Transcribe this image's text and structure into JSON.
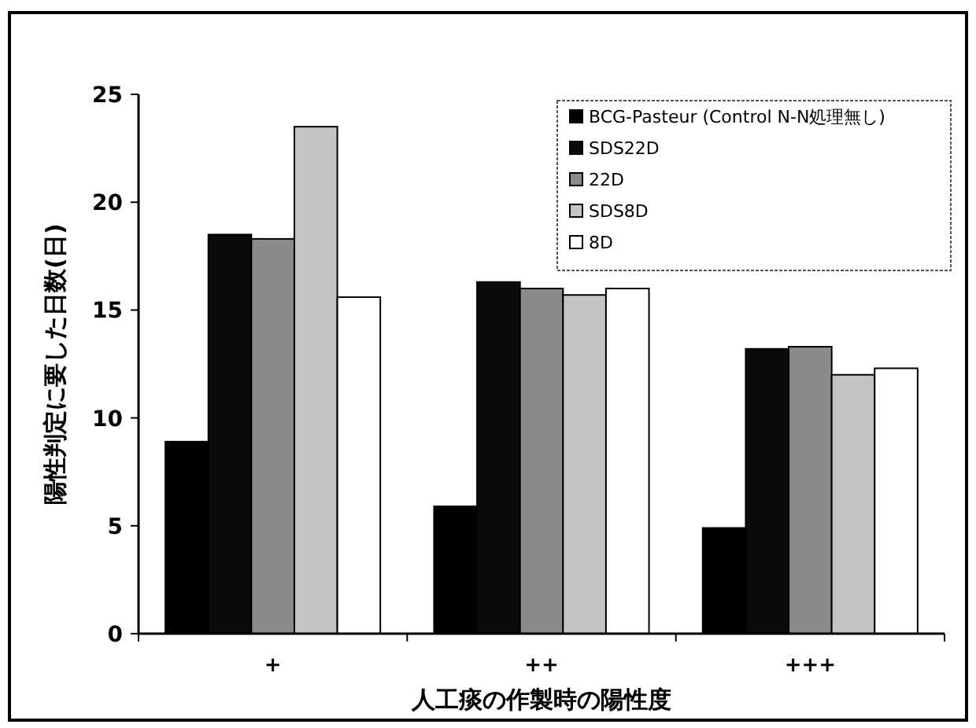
{
  "chart_data": {
    "type": "bar",
    "xlabel": "人工痰の作製時の陽性度",
    "ylabel": "陽性判定に要した日数(日)",
    "categories": [
      "+",
      "++",
      "+++"
    ],
    "series": [
      {
        "name": "BCG-Pasteur (Control N-N処理無し)",
        "color": "#000000",
        "values": [
          8.9,
          5.9,
          4.9
        ]
      },
      {
        "name": "SDS22D",
        "color": "#0a0a0a",
        "values": [
          18.5,
          16.3,
          13.2
        ]
      },
      {
        "name": "22D",
        "color": "#8a8a8a",
        "values": [
          18.3,
          16.0,
          13.3
        ]
      },
      {
        "name": "SDS8D",
        "color": "#c4c4c4",
        "values": [
          23.5,
          15.7,
          12.0
        ]
      },
      {
        "name": "8D",
        "color": "#ffffff",
        "values": [
          15.6,
          16.0,
          12.3
        ]
      }
    ],
    "ylim": [
      0,
      25
    ],
    "yticks": [
      0,
      5,
      10,
      15,
      20,
      25
    ],
    "legend": "top right",
    "grid": false
  }
}
